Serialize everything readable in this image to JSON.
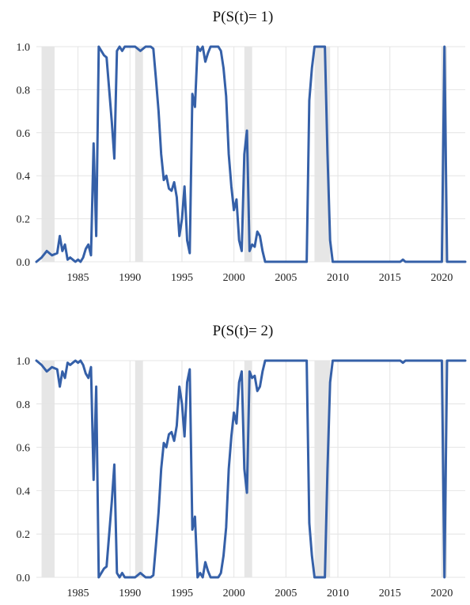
{
  "chart_data": [
    {
      "type": "line",
      "title": "P(S(t)= 1)",
      "xlabel": "",
      "ylabel": "",
      "xlim": [
        1981.0,
        2022.25
      ],
      "ylim": [
        0.0,
        1.0
      ],
      "grid": true,
      "x_ticks": [
        1985,
        1990,
        1995,
        2000,
        2005,
        2010,
        2015,
        2020
      ],
      "y_ticks": [
        0.0,
        0.2,
        0.4,
        0.6,
        0.8,
        1.0
      ],
      "x_tick_labels": [
        "1985",
        "1990",
        "1995",
        "2000",
        "2005",
        "2010",
        "2015",
        "2020"
      ],
      "y_tick_labels": [
        "0.0",
        "0.2",
        "0.4",
        "0.6",
        "0.8",
        "1.0"
      ],
      "line_color": "#3560a8",
      "shade_color": "#e6e6e6",
      "recessions": [
        [
          1981.5,
          1982.75
        ],
        [
          1990.5,
          1991.25
        ],
        [
          2001.0,
          2001.75
        ],
        [
          2007.75,
          2009.25
        ],
        [
          2020.0,
          2020.5
        ]
      ],
      "series": [
        {
          "x": [
            1981.0,
            1981.5,
            1982.0,
            1982.25,
            1982.5,
            1983.0,
            1983.25,
            1983.5,
            1983.75,
            1984.0,
            1984.25,
            1984.5,
            1984.75,
            1985.0,
            1985.25,
            1985.5,
            1985.75,
            1986.0,
            1986.25,
            1986.5,
            1986.75,
            1987.0,
            1987.25,
            1987.5,
            1987.75,
            1988.0,
            1988.25,
            1988.5,
            1988.75,
            1989.0,
            1989.25,
            1989.5,
            1989.75,
            1990.0,
            1990.5,
            1991.0,
            1991.5,
            1992.0,
            1992.25,
            1992.5,
            1992.75,
            1993.0,
            1993.25,
            1993.5,
            1993.75,
            1994.0,
            1994.25,
            1994.5,
            1994.75,
            1995.0,
            1995.25,
            1995.5,
            1995.75,
            1996.0,
            1996.25,
            1996.5,
            1996.75,
            1997.0,
            1997.25,
            1997.5,
            1997.75,
            1998.0,
            1998.25,
            1998.5,
            1998.75,
            1999.0,
            1999.25,
            1999.5,
            1999.75,
            2000.0,
            2000.25,
            2000.5,
            2000.75,
            2001.0,
            2001.25,
            2001.5,
            2001.75,
            2002.0,
            2002.25,
            2002.5,
            2002.75,
            2003.0,
            2003.25,
            2003.5,
            2003.75,
            2004.0,
            2005.0,
            2006.0,
            2007.0,
            2007.25,
            2007.5,
            2007.75,
            2008.0,
            2008.5,
            2008.75,
            2009.0,
            2009.25,
            2009.5,
            2009.75,
            2010.0,
            2011.0,
            2012.0,
            2013.0,
            2014.0,
            2015.0,
            2016.0,
            2016.25,
            2016.5,
            2017.0,
            2018.0,
            2019.0,
            2019.75,
            2020.0,
            2020.25,
            2020.5,
            2020.75,
            2021.0,
            2022.0,
            2022.25
          ],
          "y": [
            0.0,
            0.02,
            0.05,
            0.04,
            0.03,
            0.04,
            0.12,
            0.05,
            0.08,
            0.01,
            0.02,
            0.01,
            0.0,
            0.01,
            0.0,
            0.02,
            0.06,
            0.08,
            0.03,
            0.55,
            0.12,
            1.0,
            0.98,
            0.96,
            0.95,
            0.8,
            0.65,
            0.48,
            0.98,
            1.0,
            0.98,
            1.0,
            1.0,
            1.0,
            1.0,
            0.98,
            1.0,
            1.0,
            0.99,
            0.85,
            0.7,
            0.5,
            0.38,
            0.4,
            0.34,
            0.33,
            0.37,
            0.3,
            0.12,
            0.2,
            0.35,
            0.1,
            0.04,
            0.78,
            0.72,
            1.0,
            0.98,
            1.0,
            0.93,
            0.97,
            1.0,
            1.0,
            1.0,
            1.0,
            0.98,
            0.9,
            0.77,
            0.5,
            0.35,
            0.24,
            0.29,
            0.1,
            0.05,
            0.5,
            0.61,
            0.05,
            0.08,
            0.07,
            0.14,
            0.12,
            0.05,
            0.0,
            0.0,
            0.0,
            0.0,
            0.0,
            0.0,
            0.0,
            0.0,
            0.75,
            0.9,
            1.0,
            1.0,
            1.0,
            1.0,
            0.5,
            0.1,
            0.0,
            0.0,
            0.0,
            0.0,
            0.0,
            0.0,
            0.0,
            0.0,
            0.0,
            0.01,
            0.0,
            0.0,
            0.0,
            0.0,
            0.0,
            0.0,
            1.0,
            0.0,
            0.0,
            0.0,
            0.0,
            0.0
          ]
        }
      ]
    },
    {
      "type": "line",
      "title": "P(S(t)= 2)",
      "xlabel": "",
      "ylabel": "",
      "xlim": [
        1981.0,
        2022.25
      ],
      "ylim": [
        0.0,
        1.0
      ],
      "grid": true,
      "x_ticks": [
        1985,
        1990,
        1995,
        2000,
        2005,
        2010,
        2015,
        2020
      ],
      "y_ticks": [
        0.0,
        0.2,
        0.4,
        0.6,
        0.8,
        1.0
      ],
      "x_tick_labels": [
        "1985",
        "1990",
        "1995",
        "2000",
        "2005",
        "2010",
        "2015",
        "2020"
      ],
      "y_tick_labels": [
        "0.0",
        "0.2",
        "0.4",
        "0.6",
        "0.8",
        "1.0"
      ],
      "line_color": "#3560a8",
      "shade_color": "#e6e6e6",
      "recessions": [
        [
          1981.5,
          1982.75
        ],
        [
          1990.5,
          1991.25
        ],
        [
          2001.0,
          2001.75
        ],
        [
          2007.75,
          2009.25
        ],
        [
          2020.0,
          2020.5
        ]
      ],
      "series": [
        {
          "x": [
            1981.0,
            1981.5,
            1982.0,
            1982.25,
            1982.5,
            1983.0,
            1983.25,
            1983.5,
            1983.75,
            1984.0,
            1984.25,
            1984.5,
            1984.75,
            1985.0,
            1985.25,
            1985.5,
            1985.75,
            1986.0,
            1986.25,
            1986.5,
            1986.75,
            1987.0,
            1987.25,
            1987.5,
            1987.75,
            1988.0,
            1988.25,
            1988.5,
            1988.75,
            1989.0,
            1989.25,
            1989.5,
            1989.75,
            1990.0,
            1990.5,
            1991.0,
            1991.5,
            1992.0,
            1992.25,
            1992.5,
            1992.75,
            1993.0,
            1993.25,
            1993.5,
            1993.75,
            1994.0,
            1994.25,
            1994.5,
            1994.75,
            1995.0,
            1995.25,
            1995.5,
            1995.75,
            1996.0,
            1996.25,
            1996.5,
            1996.75,
            1997.0,
            1997.25,
            1997.5,
            1997.75,
            1998.0,
            1998.25,
            1998.5,
            1998.75,
            1999.0,
            1999.25,
            1999.5,
            1999.75,
            2000.0,
            2000.25,
            2000.5,
            2000.75,
            2001.0,
            2001.25,
            2001.5,
            2001.75,
            2002.0,
            2002.25,
            2002.5,
            2002.75,
            2003.0,
            2003.25,
            2003.5,
            2003.75,
            2004.0,
            2005.0,
            2006.0,
            2007.0,
            2007.25,
            2007.5,
            2007.75,
            2008.0,
            2008.5,
            2008.75,
            2009.0,
            2009.25,
            2009.5,
            2009.75,
            2010.0,
            2011.0,
            2012.0,
            2013.0,
            2014.0,
            2015.0,
            2016.0,
            2016.25,
            2016.5,
            2017.0,
            2018.0,
            2019.0,
            2019.75,
            2020.0,
            2020.25,
            2020.5,
            2020.75,
            2021.0,
            2022.0,
            2022.25
          ],
          "y": [
            1.0,
            0.98,
            0.95,
            0.96,
            0.97,
            0.96,
            0.88,
            0.95,
            0.92,
            0.99,
            0.98,
            0.99,
            1.0,
            0.99,
            1.0,
            0.98,
            0.94,
            0.92,
            0.97,
            0.45,
            0.88,
            0.0,
            0.02,
            0.04,
            0.05,
            0.2,
            0.35,
            0.52,
            0.02,
            0.0,
            0.02,
            0.0,
            0.0,
            0.0,
            0.0,
            0.02,
            0.0,
            0.0,
            0.01,
            0.15,
            0.3,
            0.5,
            0.62,
            0.6,
            0.66,
            0.67,
            0.63,
            0.7,
            0.88,
            0.8,
            0.65,
            0.9,
            0.96,
            0.22,
            0.28,
            0.0,
            0.02,
            0.0,
            0.07,
            0.03,
            0.0,
            0.0,
            0.0,
            0.0,
            0.02,
            0.1,
            0.23,
            0.5,
            0.65,
            0.76,
            0.71,
            0.9,
            0.95,
            0.5,
            0.39,
            0.95,
            0.92,
            0.93,
            0.86,
            0.88,
            0.95,
            1.0,
            1.0,
            1.0,
            1.0,
            1.0,
            1.0,
            1.0,
            1.0,
            0.25,
            0.1,
            0.0,
            0.0,
            0.0,
            0.0,
            0.5,
            0.9,
            1.0,
            1.0,
            1.0,
            1.0,
            1.0,
            1.0,
            1.0,
            1.0,
            1.0,
            0.99,
            1.0,
            1.0,
            1.0,
            1.0,
            1.0,
            1.0,
            0.0,
            1.0,
            1.0,
            1.0,
            1.0,
            1.0
          ]
        }
      ]
    }
  ]
}
